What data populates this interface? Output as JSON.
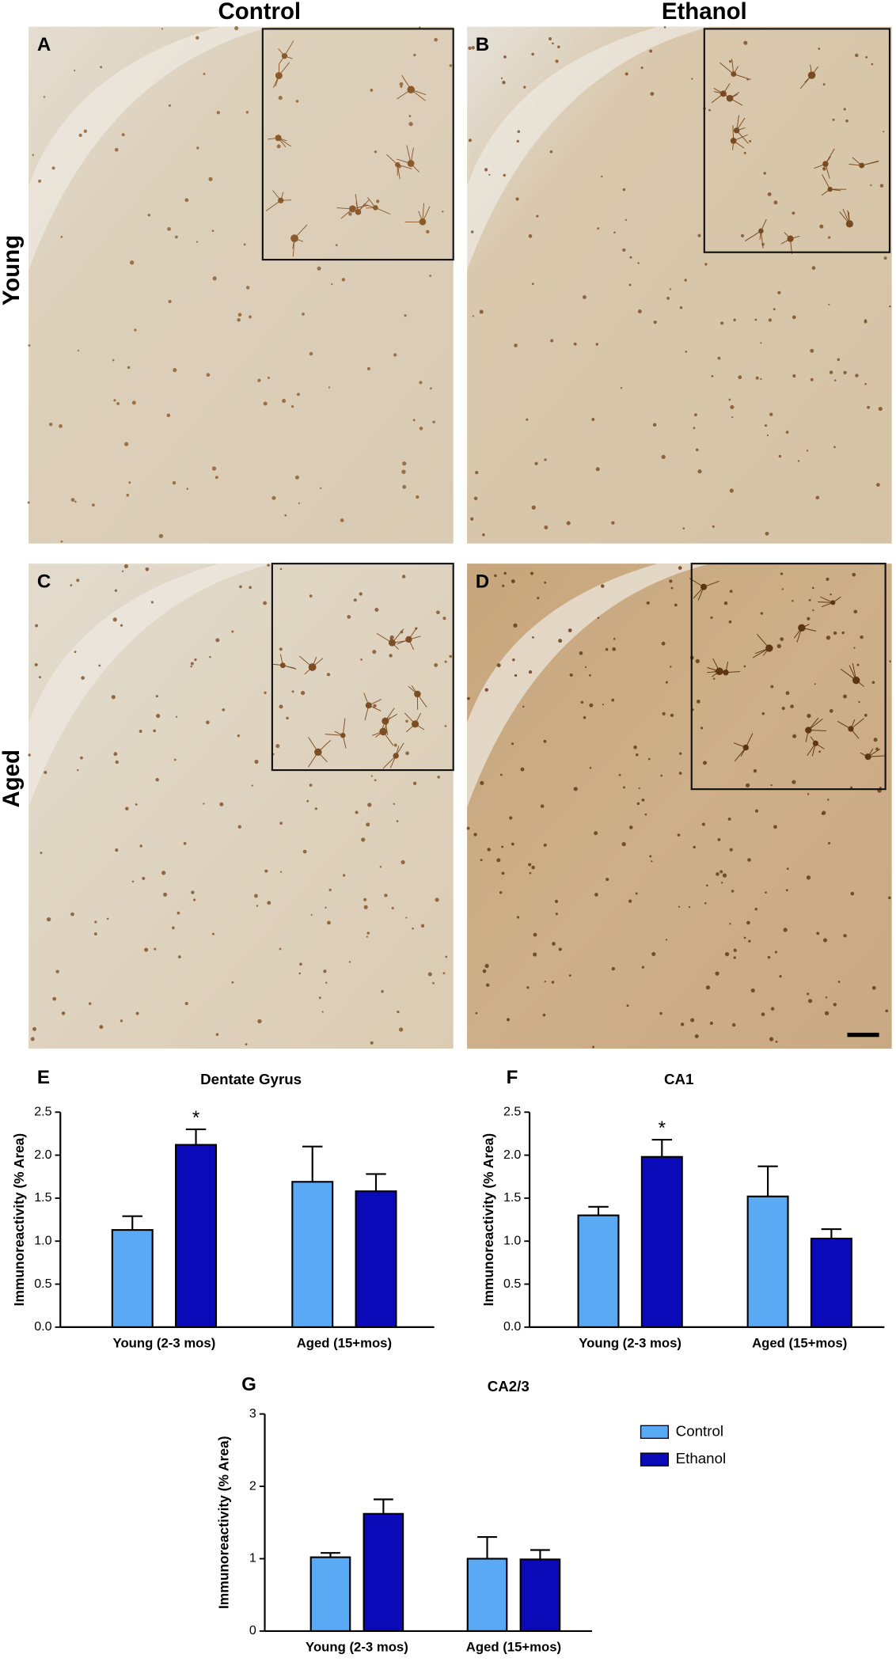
{
  "figure": {
    "columns": [
      "Control",
      "Ethanol"
    ],
    "rows": [
      "Young",
      "Aged"
    ],
    "panels": [
      "A",
      "B",
      "C",
      "D"
    ]
  },
  "chart_data": [
    {
      "type": "bar",
      "panel": "E",
      "title": "Dentate Gyrus",
      "ylabel": "Immunoreactivity (% Area)",
      "categories": [
        "Young (2-3 mos)",
        "Aged (15+mos)"
      ],
      "series": [
        {
          "color": "#5aa9f5",
          "values": [
            1.13,
            1.69
          ],
          "errors": [
            0.16,
            0.41
          ]
        },
        {
          "color": "#0a0ab8",
          "values": [
            2.12,
            1.58
          ],
          "errors": [
            0.18,
            0.2
          ]
        }
      ],
      "ylim": [
        0,
        2.5
      ],
      "yticks": [
        {
          "value": 0,
          "label": "0.0"
        },
        0.5,
        {
          "value": 1,
          "label": "1.0"
        },
        1.5,
        {
          "value": 2,
          "label": "2.0"
        },
        2.5
      ],
      "annotation": "*"
    },
    {
      "type": "bar",
      "panel": "F",
      "title": "CA1",
      "ylabel": "Immunoreactivity (% Area)",
      "categories": [
        "Young (2-3 mos)",
        "Aged (15+mos)"
      ],
      "series": [
        {
          "color": "#5aa9f5",
          "values": [
            1.3,
            1.52
          ],
          "errors": [
            0.1,
            0.35
          ]
        },
        {
          "color": "#0a0ab8",
          "values": [
            1.98,
            1.03
          ],
          "errors": [
            0.2,
            0.11
          ]
        }
      ],
      "ylim": [
        0,
        2.5
      ],
      "yticks": [
        {
          "value": 0,
          "label": "0.0"
        },
        0.5,
        {
          "value": 1,
          "label": "1.0"
        },
        1.5,
        {
          "value": 2,
          "label": "2.0"
        },
        2.5
      ],
      "annotation": "*"
    },
    {
      "type": "bar",
      "panel": "G",
      "title": "CA2/3",
      "ylabel": "Immunoreactivity (% Area)",
      "categories": [
        "Young (2-3 mos)",
        "Aged (15+mos)"
      ],
      "series": [
        {
          "name": "Control",
          "color": "#5aa9f5",
          "values": [
            1.02,
            1.0
          ],
          "errors": [
            0.06,
            0.3
          ]
        },
        {
          "name": "Ethanol",
          "color": "#0a0ab8",
          "values": [
            1.62,
            0.99
          ],
          "errors": [
            0.2,
            0.13
          ]
        }
      ],
      "ylim": [
        0,
        3
      ],
      "yticks": [
        0,
        1,
        2,
        3
      ],
      "legend": "right"
    }
  ]
}
